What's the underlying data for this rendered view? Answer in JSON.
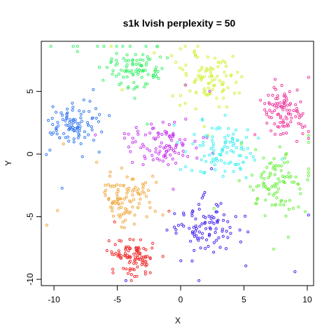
{
  "chart_data": {
    "type": "scatter",
    "title": "s1k lvish perplexity = 50",
    "xlabel": "X",
    "ylabel": "Y",
    "xlim": [
      -11,
      10.5
    ],
    "ylim": [
      -10.5,
      9
    ],
    "xticks": [
      -10,
      -5,
      0,
      5,
      10
    ],
    "yticks": [
      -10,
      -5,
      0,
      5
    ],
    "xtick_labels": [
      "-10",
      "-5",
      "0",
      "5",
      "10"
    ],
    "ytick_labels": [
      "-10",
      "-5",
      "0",
      "5"
    ],
    "grid": false,
    "legend": "none",
    "marker": "open-circle",
    "seed": 1013,
    "clusters": [
      {
        "color": "#3a7cf0",
        "center": [
          -8.6,
          2.2
        ],
        "spread": [
          1.0,
          1.0
        ],
        "count": 100
      },
      {
        "color": "#3cf06a",
        "center": [
          -3.8,
          6.8
        ],
        "spread": [
          1.2,
          0.9
        ],
        "count": 100
      },
      {
        "color": "#d0f032",
        "center": [
          2.2,
          6.2
        ],
        "spread": [
          1.2,
          1.0
        ],
        "count": 100
      },
      {
        "color": "#f03ca0",
        "center": [
          8.1,
          3.4
        ],
        "spread": [
          0.85,
          1.0
        ],
        "count": 100
      },
      {
        "color": "#c83cf0",
        "center": [
          -1.5,
          0.7
        ],
        "spread": [
          1.2,
          1.0
        ],
        "count": 100
      },
      {
        "color": "#3cf0f0",
        "center": [
          3.4,
          0.3
        ],
        "spread": [
          1.3,
          1.1
        ],
        "count": 100
      },
      {
        "color": "#68f03c",
        "center": [
          7.7,
          -2.2
        ],
        "spread": [
          1.1,
          1.2
        ],
        "count": 100
      },
      {
        "color": "#f0a83c",
        "center": [
          -4.5,
          -3.5
        ],
        "spread": [
          1.0,
          1.0
        ],
        "count": 100
      },
      {
        "color": "#4a2af0",
        "center": [
          2.1,
          -5.8
        ],
        "spread": [
          1.3,
          1.1
        ],
        "count": 100
      },
      {
        "color": "#f03030",
        "center": [
          -3.8,
          -8.2
        ],
        "spread": [
          0.85,
          0.75
        ],
        "count": 100
      }
    ]
  }
}
